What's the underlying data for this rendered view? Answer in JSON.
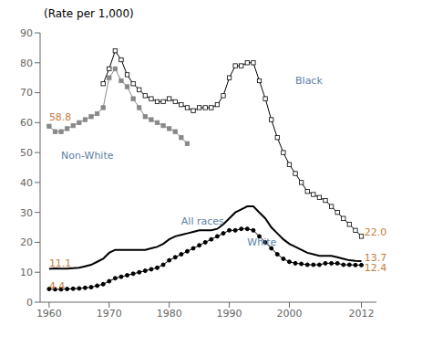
{
  "chart_data": {
    "type": "line",
    "title": "(Rate per 1,000)",
    "xlim": [
      1958.5,
      2014.5
    ],
    "ylim": [
      0,
      90
    ],
    "xticks": [
      1960,
      1970,
      1980,
      1990,
      2000,
      2012
    ],
    "yticks": [
      0,
      10,
      20,
      30,
      40,
      50,
      60,
      70,
      80,
      90
    ],
    "grid": false,
    "series": [
      {
        "name": "Black",
        "color": "#000000",
        "marker": "square-open",
        "line_style": "solid",
        "x": [
          1969,
          1970,
          1971,
          1972,
          1973,
          1974,
          1975,
          1976,
          1977,
          1978,
          1979,
          1980,
          1981,
          1982,
          1983,
          1984,
          1985,
          1986,
          1987,
          1988,
          1989,
          1990,
          1991,
          1992,
          1993,
          1994,
          1995,
          1996,
          1997,
          1998,
          1999,
          2000,
          2001,
          2002,
          2003,
          2004,
          2005,
          2006,
          2007,
          2008,
          2009,
          2010,
          2011,
          2012
        ],
        "values": [
          73,
          78,
          84,
          81,
          76,
          73,
          71,
          69,
          68,
          67,
          67,
          68,
          67,
          66,
          65,
          64,
          65,
          65,
          65,
          66,
          69,
          75,
          79,
          79,
          80,
          80,
          74,
          68,
          61,
          55,
          50,
          46,
          43,
          40,
          37,
          36,
          35,
          34,
          32,
          30,
          28,
          26,
          24,
          22
        ]
      },
      {
        "name": "Non-White",
        "color": "#888888",
        "marker": "square",
        "line_style": "solid",
        "x": [
          1960,
          1961,
          1962,
          1963,
          1964,
          1965,
          1966,
          1967,
          1968,
          1969,
          1970,
          1971,
          1972,
          1973,
          1974,
          1975,
          1976,
          1977,
          1978,
          1979,
          1980,
          1981,
          1982,
          1983
        ],
        "values": [
          58.8,
          57,
          57,
          58,
          59,
          60,
          61,
          62,
          63,
          65,
          75,
          78,
          74,
          72,
          68,
          65,
          62,
          61,
          60,
          59,
          58,
          57,
          55,
          53
        ]
      },
      {
        "name": "All races",
        "color": "#000000",
        "marker": "none",
        "line_style": "solid",
        "x": [
          1960,
          1961,
          1962,
          1963,
          1964,
          1965,
          1966,
          1967,
          1968,
          1969,
          1970,
          1971,
          1972,
          1973,
          1974,
          1975,
          1976,
          1977,
          1978,
          1979,
          1980,
          1981,
          1982,
          1983,
          1984,
          1985,
          1986,
          1987,
          1988,
          1989,
          1990,
          1991,
          1992,
          1993,
          1994,
          1995,
          1996,
          1997,
          1998,
          1999,
          2000,
          2001,
          2002,
          2003,
          2004,
          2005,
          2006,
          2007,
          2008,
          2009,
          2010,
          2011,
          2012
        ],
        "values": [
          11.1,
          11.3,
          11.2,
          11.2,
          11.4,
          11.5,
          12,
          12.5,
          13.5,
          14.5,
          16.5,
          17.5,
          17.5,
          17.5,
          17.5,
          17.5,
          17.5,
          18,
          18.5,
          19.5,
          21,
          22,
          22.5,
          23,
          23.5,
          24,
          24,
          24,
          24.5,
          26,
          28,
          30,
          31,
          32,
          32,
          30,
          28,
          25,
          23,
          21,
          19.5,
          18.5,
          17.5,
          16.5,
          16,
          15.5,
          15.5,
          15.5,
          15,
          14.5,
          14,
          13.8,
          13.7
        ]
      },
      {
        "name": "White",
        "color": "#000000",
        "marker": "circle",
        "line_style": "solid",
        "x": [
          1960,
          1961,
          1962,
          1963,
          1964,
          1965,
          1966,
          1967,
          1968,
          1969,
          1970,
          1971,
          1972,
          1973,
          1974,
          1975,
          1976,
          1977,
          1978,
          1979,
          1980,
          1981,
          1982,
          1983,
          1984,
          1985,
          1986,
          1987,
          1988,
          1989,
          1990,
          1991,
          1992,
          1993,
          1994,
          1995,
          1996,
          1997,
          1998,
          1999,
          2000,
          2001,
          2002,
          2003,
          2004,
          2005,
          2006,
          2007,
          2008,
          2009,
          2010,
          2011,
          2012
        ],
        "values": [
          4.4,
          4.3,
          4.3,
          4.4,
          4.5,
          4.6,
          4.8,
          5,
          5.5,
          6,
          7,
          8,
          8.5,
          9,
          9.5,
          10,
          10.5,
          11,
          11.5,
          12.5,
          14,
          15,
          16,
          17,
          18,
          19,
          20,
          21,
          22,
          23,
          24,
          24,
          24.5,
          24.5,
          24,
          22,
          20,
          18,
          16,
          14.5,
          13.5,
          13,
          12.8,
          12.5,
          12.5,
          12.5,
          13,
          13,
          13,
          12.5,
          12.5,
          12.4,
          12.4
        ]
      }
    ],
    "annotations": [
      {
        "text": "Black",
        "x": 2001,
        "y": 74,
        "color": "#5B7FA6"
      },
      {
        "text": "Non-White",
        "x": 1962,
        "y": 49,
        "color": "#5B7FA6"
      },
      {
        "text": "All races",
        "x": 1982,
        "y": 27,
        "color": "#5B7FA6"
      },
      {
        "text": "White",
        "x": 1993,
        "y": 20,
        "color": "#5B7FA6"
      },
      {
        "text": "58.8",
        "x": 1960,
        "y": 62,
        "color": "#C67B3B"
      },
      {
        "text": "11.1",
        "x": 1960,
        "y": 13,
        "color": "#C67B3B"
      },
      {
        "text": "4.4",
        "x": 1960,
        "y": 5.5,
        "color": "#C67B3B"
      },
      {
        "text": "22.0",
        "x": 2012.5,
        "y": 23.5,
        "color": "#C67B3B"
      },
      {
        "text": "13.7",
        "x": 2012.5,
        "y": 15,
        "color": "#C67B3B"
      },
      {
        "text": "12.4",
        "x": 2012.5,
        "y": 11.5,
        "color": "#C67B3B"
      }
    ]
  }
}
